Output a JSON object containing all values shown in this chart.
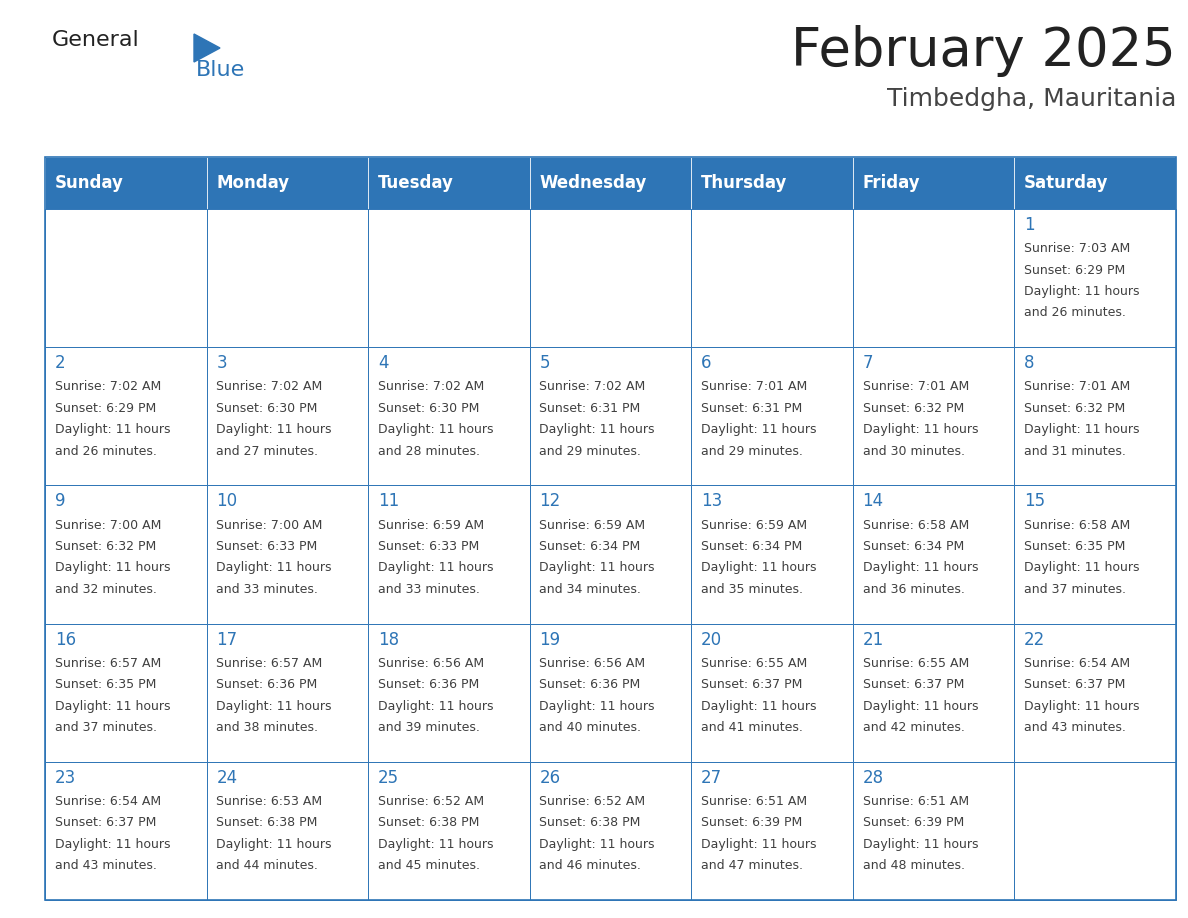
{
  "title": "February 2025",
  "subtitle": "Timbedgha, Mauritania",
  "header_color": "#2e75b6",
  "header_text_color": "#ffffff",
  "border_color": "#2e75b6",
  "day_number_color": "#2e75b6",
  "text_color": "#404040",
  "days_of_week": [
    "Sunday",
    "Monday",
    "Tuesday",
    "Wednesday",
    "Thursday",
    "Friday",
    "Saturday"
  ],
  "calendar_data": [
    [
      {
        "day": "",
        "sunrise": "",
        "sunset": "",
        "daylight": ""
      },
      {
        "day": "",
        "sunrise": "",
        "sunset": "",
        "daylight": ""
      },
      {
        "day": "",
        "sunrise": "",
        "sunset": "",
        "daylight": ""
      },
      {
        "day": "",
        "sunrise": "",
        "sunset": "",
        "daylight": ""
      },
      {
        "day": "",
        "sunrise": "",
        "sunset": "",
        "daylight": ""
      },
      {
        "day": "",
        "sunrise": "",
        "sunset": "",
        "daylight": ""
      },
      {
        "day": "1",
        "sunrise": "7:03 AM",
        "sunset": "6:29 PM",
        "daylight": "11 hours and 26 minutes."
      }
    ],
    [
      {
        "day": "2",
        "sunrise": "7:02 AM",
        "sunset": "6:29 PM",
        "daylight": "11 hours and 26 minutes."
      },
      {
        "day": "3",
        "sunrise": "7:02 AM",
        "sunset": "6:30 PM",
        "daylight": "11 hours and 27 minutes."
      },
      {
        "day": "4",
        "sunrise": "7:02 AM",
        "sunset": "6:30 PM",
        "daylight": "11 hours and 28 minutes."
      },
      {
        "day": "5",
        "sunrise": "7:02 AM",
        "sunset": "6:31 PM",
        "daylight": "11 hours and 29 minutes."
      },
      {
        "day": "6",
        "sunrise": "7:01 AM",
        "sunset": "6:31 PM",
        "daylight": "11 hours and 29 minutes."
      },
      {
        "day": "7",
        "sunrise": "7:01 AM",
        "sunset": "6:32 PM",
        "daylight": "11 hours and 30 minutes."
      },
      {
        "day": "8",
        "sunrise": "7:01 AM",
        "sunset": "6:32 PM",
        "daylight": "11 hours and 31 minutes."
      }
    ],
    [
      {
        "day": "9",
        "sunrise": "7:00 AM",
        "sunset": "6:32 PM",
        "daylight": "11 hours and 32 minutes."
      },
      {
        "day": "10",
        "sunrise": "7:00 AM",
        "sunset": "6:33 PM",
        "daylight": "11 hours and 33 minutes."
      },
      {
        "day": "11",
        "sunrise": "6:59 AM",
        "sunset": "6:33 PM",
        "daylight": "11 hours and 33 minutes."
      },
      {
        "day": "12",
        "sunrise": "6:59 AM",
        "sunset": "6:34 PM",
        "daylight": "11 hours and 34 minutes."
      },
      {
        "day": "13",
        "sunrise": "6:59 AM",
        "sunset": "6:34 PM",
        "daylight": "11 hours and 35 minutes."
      },
      {
        "day": "14",
        "sunrise": "6:58 AM",
        "sunset": "6:34 PM",
        "daylight": "11 hours and 36 minutes."
      },
      {
        "day": "15",
        "sunrise": "6:58 AM",
        "sunset": "6:35 PM",
        "daylight": "11 hours and 37 minutes."
      }
    ],
    [
      {
        "day": "16",
        "sunrise": "6:57 AM",
        "sunset": "6:35 PM",
        "daylight": "11 hours and 37 minutes."
      },
      {
        "day": "17",
        "sunrise": "6:57 AM",
        "sunset": "6:36 PM",
        "daylight": "11 hours and 38 minutes."
      },
      {
        "day": "18",
        "sunrise": "6:56 AM",
        "sunset": "6:36 PM",
        "daylight": "11 hours and 39 minutes."
      },
      {
        "day": "19",
        "sunrise": "6:56 AM",
        "sunset": "6:36 PM",
        "daylight": "11 hours and 40 minutes."
      },
      {
        "day": "20",
        "sunrise": "6:55 AM",
        "sunset": "6:37 PM",
        "daylight": "11 hours and 41 minutes."
      },
      {
        "day": "21",
        "sunrise": "6:55 AM",
        "sunset": "6:37 PM",
        "daylight": "11 hours and 42 minutes."
      },
      {
        "day": "22",
        "sunrise": "6:54 AM",
        "sunset": "6:37 PM",
        "daylight": "11 hours and 43 minutes."
      }
    ],
    [
      {
        "day": "23",
        "sunrise": "6:54 AM",
        "sunset": "6:37 PM",
        "daylight": "11 hours and 43 minutes."
      },
      {
        "day": "24",
        "sunrise": "6:53 AM",
        "sunset": "6:38 PM",
        "daylight": "11 hours and 44 minutes."
      },
      {
        "day": "25",
        "sunrise": "6:52 AM",
        "sunset": "6:38 PM",
        "daylight": "11 hours and 45 minutes."
      },
      {
        "day": "26",
        "sunrise": "6:52 AM",
        "sunset": "6:38 PM",
        "daylight": "11 hours and 46 minutes."
      },
      {
        "day": "27",
        "sunrise": "6:51 AM",
        "sunset": "6:39 PM",
        "daylight": "11 hours and 47 minutes."
      },
      {
        "day": "28",
        "sunrise": "6:51 AM",
        "sunset": "6:39 PM",
        "daylight": "11 hours and 48 minutes."
      },
      {
        "day": "",
        "sunrise": "",
        "sunset": "",
        "daylight": ""
      }
    ]
  ],
  "logo_general_color": "#222222",
  "logo_blue_color": "#2e75b6",
  "logo_triangle_color": "#2e75b6",
  "title_color": "#222222",
  "subtitle_color": "#444444",
  "title_fontsize": 38,
  "subtitle_fontsize": 18,
  "header_fontsize": 12,
  "day_num_fontsize": 12,
  "cell_text_fontsize": 9,
  "logo_fontsize": 16
}
